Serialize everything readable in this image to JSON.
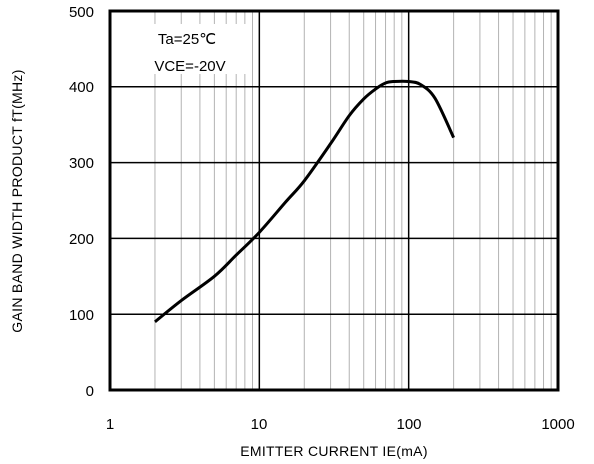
{
  "chart_data": {
    "type": "line",
    "title": "",
    "xlabel": "EMITTER  CURRENT  IE(mA)",
    "ylabel": "GAIN  BAND  WIDTH  PRODUCT  fT(MHz)",
    "xscale": "log",
    "xlim": [
      1,
      1000
    ],
    "ylim": [
      0,
      500
    ],
    "grid": true,
    "x_ticks": [
      "1",
      "10",
      "100",
      "1000"
    ],
    "y_ticks": [
      "0",
      "100",
      "200",
      "300",
      "400",
      "500"
    ],
    "annotations": [
      "Ta=25℃",
      "VCE=-20V"
    ],
    "series": [
      {
        "name": "",
        "x": [
          2,
          3,
          5,
          7,
          10,
          15,
          20,
          30,
          40,
          50,
          60,
          70,
          80,
          100,
          120,
          150,
          200
        ],
        "y": [
          90,
          118,
          150,
          178,
          208,
          248,
          276,
          325,
          362,
          384,
          397,
          405,
          407,
          407,
          403,
          385,
          333
        ]
      }
    ]
  }
}
